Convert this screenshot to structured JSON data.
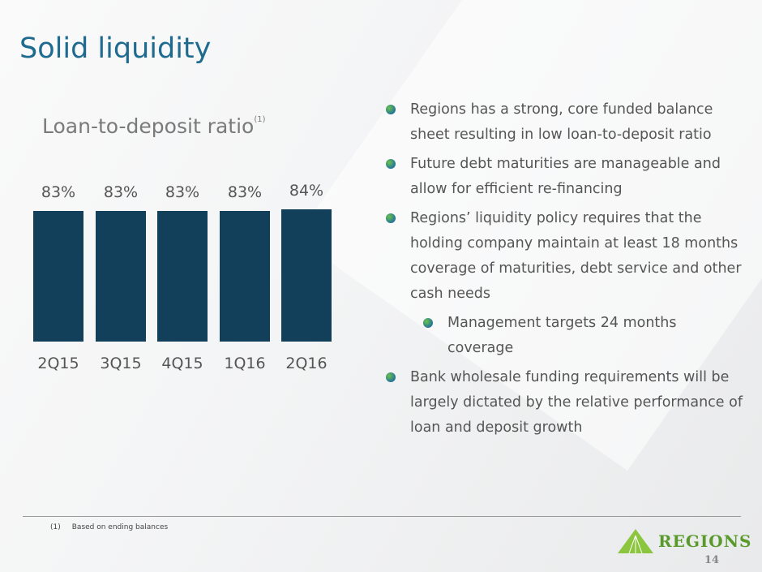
{
  "title": "Solid liquidity",
  "chart_data": {
    "type": "bar",
    "title": "Loan-to-deposit ratio",
    "title_note": "(1)",
    "categories": [
      "2Q15",
      "3Q15",
      "4Q15",
      "1Q16",
      "2Q16"
    ],
    "values": [
      83,
      83,
      83,
      83,
      84
    ],
    "value_labels": [
      "83%",
      "83%",
      "83%",
      "83%",
      "84%"
    ],
    "ylim": [
      0,
      100
    ],
    "grid": false,
    "bar_color": "#123f5a"
  },
  "bullets": [
    {
      "text": "Regions has a strong, core funded balance sheet resulting in low loan-to-deposit ratio",
      "level": 1
    },
    {
      "text": "Future debt maturities are manageable and allow for efficient re-financing",
      "level": 1
    },
    {
      "text": "Regions’ liquidity policy requires that the holding company maintain at least 18 months coverage of maturities, debt service and other cash needs",
      "level": 1
    },
    {
      "text": "Management targets 24 months coverage",
      "level": 2
    },
    {
      "text": "Bank wholesale funding requirements will be largely dictated by the relative performance of loan and deposit growth",
      "level": 1
    }
  ],
  "footnote": {
    "marker": "(1)",
    "text": "Based on ending balances"
  },
  "logo": {
    "text": "REGIONS",
    "color": "#6cb33f"
  },
  "page_number": "14",
  "colors": {
    "title": "#1f6b8f"
  }
}
